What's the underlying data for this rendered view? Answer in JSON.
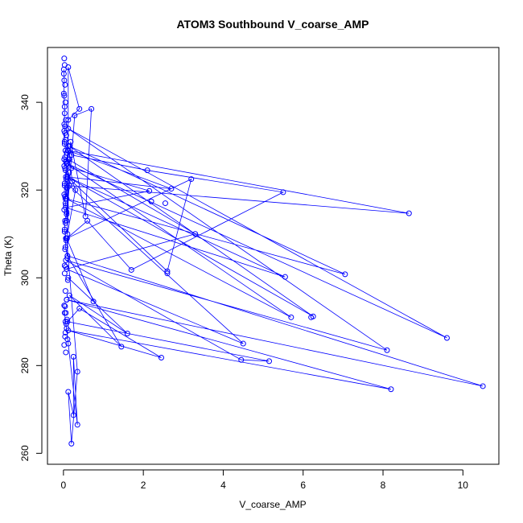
{
  "chart_data": {
    "type": "line",
    "title": "ATOM3 Southbound V_coarse_AMP",
    "xlabel": "V_coarse_AMP",
    "ylabel": "Theta (K)",
    "xlim": [
      -0.4,
      10.9
    ],
    "ylim": [
      257.5,
      352.5
    ],
    "xticks": [
      0,
      2,
      4,
      6,
      8,
      10
    ],
    "yticks": [
      260,
      280,
      300,
      320,
      340
    ],
    "grid": false,
    "legend": "none",
    "series_color": "#0000ff",
    "marker": "open-circle",
    "series": [
      {
        "x": [
          0.01,
          0.02,
          0.01,
          0.03,
          0.02,
          0.04,
          0.03,
          0.05,
          0.02,
          0.04,
          0.06,
          0.03,
          0.02,
          0.05,
          0.08,
          0.04,
          0.03,
          0.06,
          0.05,
          0.1,
          0.12,
          0.4,
          0.12,
          0.12,
          0.08,
          0.28,
          0.7,
          0.55,
          0.18,
          0.15,
          0.22,
          0.3,
          0.1,
          0.14,
          0.05,
          0.08,
          0.12,
          0.2,
          2.1,
          5.5,
          1.7,
          0.6,
          0.09,
          3.2,
          2.6,
          0.1,
          2.7,
          0.12,
          8.65,
          0.15,
          4.5,
          0.08,
          3.3,
          0.12,
          0.2,
          2.15,
          0.06,
          5.55,
          0.1,
          6.25,
          0.15,
          7.05,
          0.08,
          5.7,
          0.1,
          9.6,
          0.12,
          8.1,
          0.06,
          4.45,
          5.15,
          0.1,
          0.4,
          2.45,
          0.12,
          8.2,
          0.08,
          10.5,
          0.1,
          1.45,
          0.15,
          1.6,
          0.12,
          0.75,
          0.08,
          0.35,
          0.2,
          0.12,
          0.25,
          0.25,
          0.35,
          0.12,
          0.08,
          0.05,
          0.03,
          0.02
        ],
        "y": [
          347.5,
          345,
          342,
          339,
          335,
          333,
          331,
          329,
          327,
          325,
          323,
          321,
          319,
          317,
          315,
          313,
          311,
          309,
          307,
          305,
          336,
          338.5,
          348,
          329,
          313,
          337,
          338.5,
          314,
          331,
          327,
          322,
          320,
          310,
          324,
          318,
          326,
          330,
          328,
          324.5,
          319.5,
          301.8,
          313,
          309,
          322.5,
          301.5,
          323,
          320.3,
          329,
          314.7,
          321,
          285,
          302,
          310,
          327,
          325,
          319.8,
          316,
          300.2,
          323,
          291.2,
          330,
          300.8,
          318,
          291,
          326,
          286.3,
          334,
          283.5,
          304,
          281.3,
          281,
          290,
          293,
          281.8,
          288,
          274.6,
          295,
          275.3,
          305,
          284.3,
          296,
          287.3,
          300,
          294.6,
          309,
          278.6,
          262.2,
          274,
          268.7,
          282,
          266.5,
          285,
          288.5,
          290,
          292,
          293.7
        ]
      }
    ],
    "extra_points": {
      "x": [
        0.02,
        0.03,
        0.01,
        0.04,
        0.02,
        0.05,
        0.03,
        0.06,
        0.04,
        0.02,
        0.07,
        0.05,
        0.03,
        0.08,
        0.04,
        0.06,
        0.02,
        0.05,
        0.07,
        0.03,
        0.09,
        0.04,
        0.06,
        0.02,
        0.08,
        0.05,
        0.03,
        0.07,
        0.04,
        0.1,
        0.06,
        0.03,
        0.11,
        0.05,
        0.08,
        0.04,
        0.06,
        0.09,
        0.02,
        0.07,
        0.05,
        0.1,
        0.03,
        0.06,
        0.04,
        2.2,
        2.55,
        2.6,
        6.2
      ],
      "y": [
        350,
        348.5,
        346.5,
        344,
        341.5,
        340,
        337.5,
        336,
        334.5,
        333.5,
        332.5,
        331.5,
        330.5,
        328.5,
        327.5,
        326.5,
        325.5,
        324.5,
        322.5,
        321.5,
        320.5,
        318.5,
        316.5,
        315.5,
        314.5,
        312.5,
        310.5,
        308.5,
        306.5,
        304.5,
        302.5,
        301,
        299.5,
        297,
        295,
        293.5,
        292,
        290.5,
        284.7,
        289.5,
        287.5,
        286,
        302.8,
        283,
        286.6,
        317.4,
        317,
        301,
        291
      ]
    }
  }
}
